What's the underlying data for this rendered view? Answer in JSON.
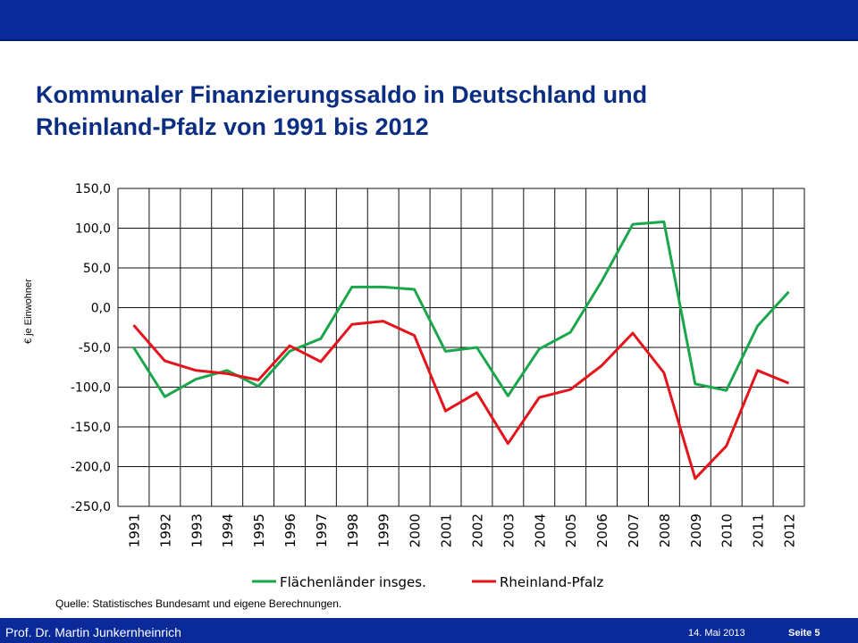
{
  "slide": {
    "title_line1": "Kommunaler Finanzierungssaldo in Deutschland und",
    "title_line2": "Rheinland-Pfalz von 1991 bis 2012",
    "source": "Quelle: Statistisches Bundesamt und eigene Berechnungen.",
    "author": "Prof. Dr. Martin Junkernheinrich",
    "date": "14. Mai 2013",
    "page": "Seite 5"
  },
  "chart_data": {
    "type": "line",
    "title": "",
    "xlabel": "",
    "ylabel": "€ je Einwohner",
    "x": [
      "1991",
      "1992",
      "1993",
      "1994",
      "1995",
      "1996",
      "1997",
      "1998",
      "1999",
      "2000",
      "2001",
      "2002",
      "2003",
      "2004",
      "2005",
      "2006",
      "2007",
      "2008",
      "2009",
      "2010",
      "2011",
      "2012"
    ],
    "yticks": [
      "150,0",
      "100,0",
      "50,0",
      "0,0",
      "-50,0",
      "-100,0",
      "-150,0",
      "-200,0",
      "-250,0"
    ],
    "ylim": [
      -250,
      150
    ],
    "grid": true,
    "legend_position": "bottom",
    "series": [
      {
        "name": "Flächenländer insges.",
        "color": "#1aa64b",
        "values": [
          -50,
          -112,
          -90,
          -79,
          -99,
          -55,
          -39,
          26,
          26,
          23,
          -55,
          -50,
          -111,
          -52,
          -31,
          33,
          105,
          108,
          -96,
          -104,
          -23,
          20
        ]
      },
      {
        "name": "Rheinland-Pfalz",
        "color": "#e3141b",
        "values": [
          -22,
          -67,
          -79,
          -83,
          -91,
          -48,
          -68,
          -21,
          -17,
          -35,
          -130,
          -107,
          -171,
          -113,
          -103,
          -73,
          -32,
          -82,
          -215,
          -174,
          -79,
          -95
        ]
      }
    ]
  }
}
